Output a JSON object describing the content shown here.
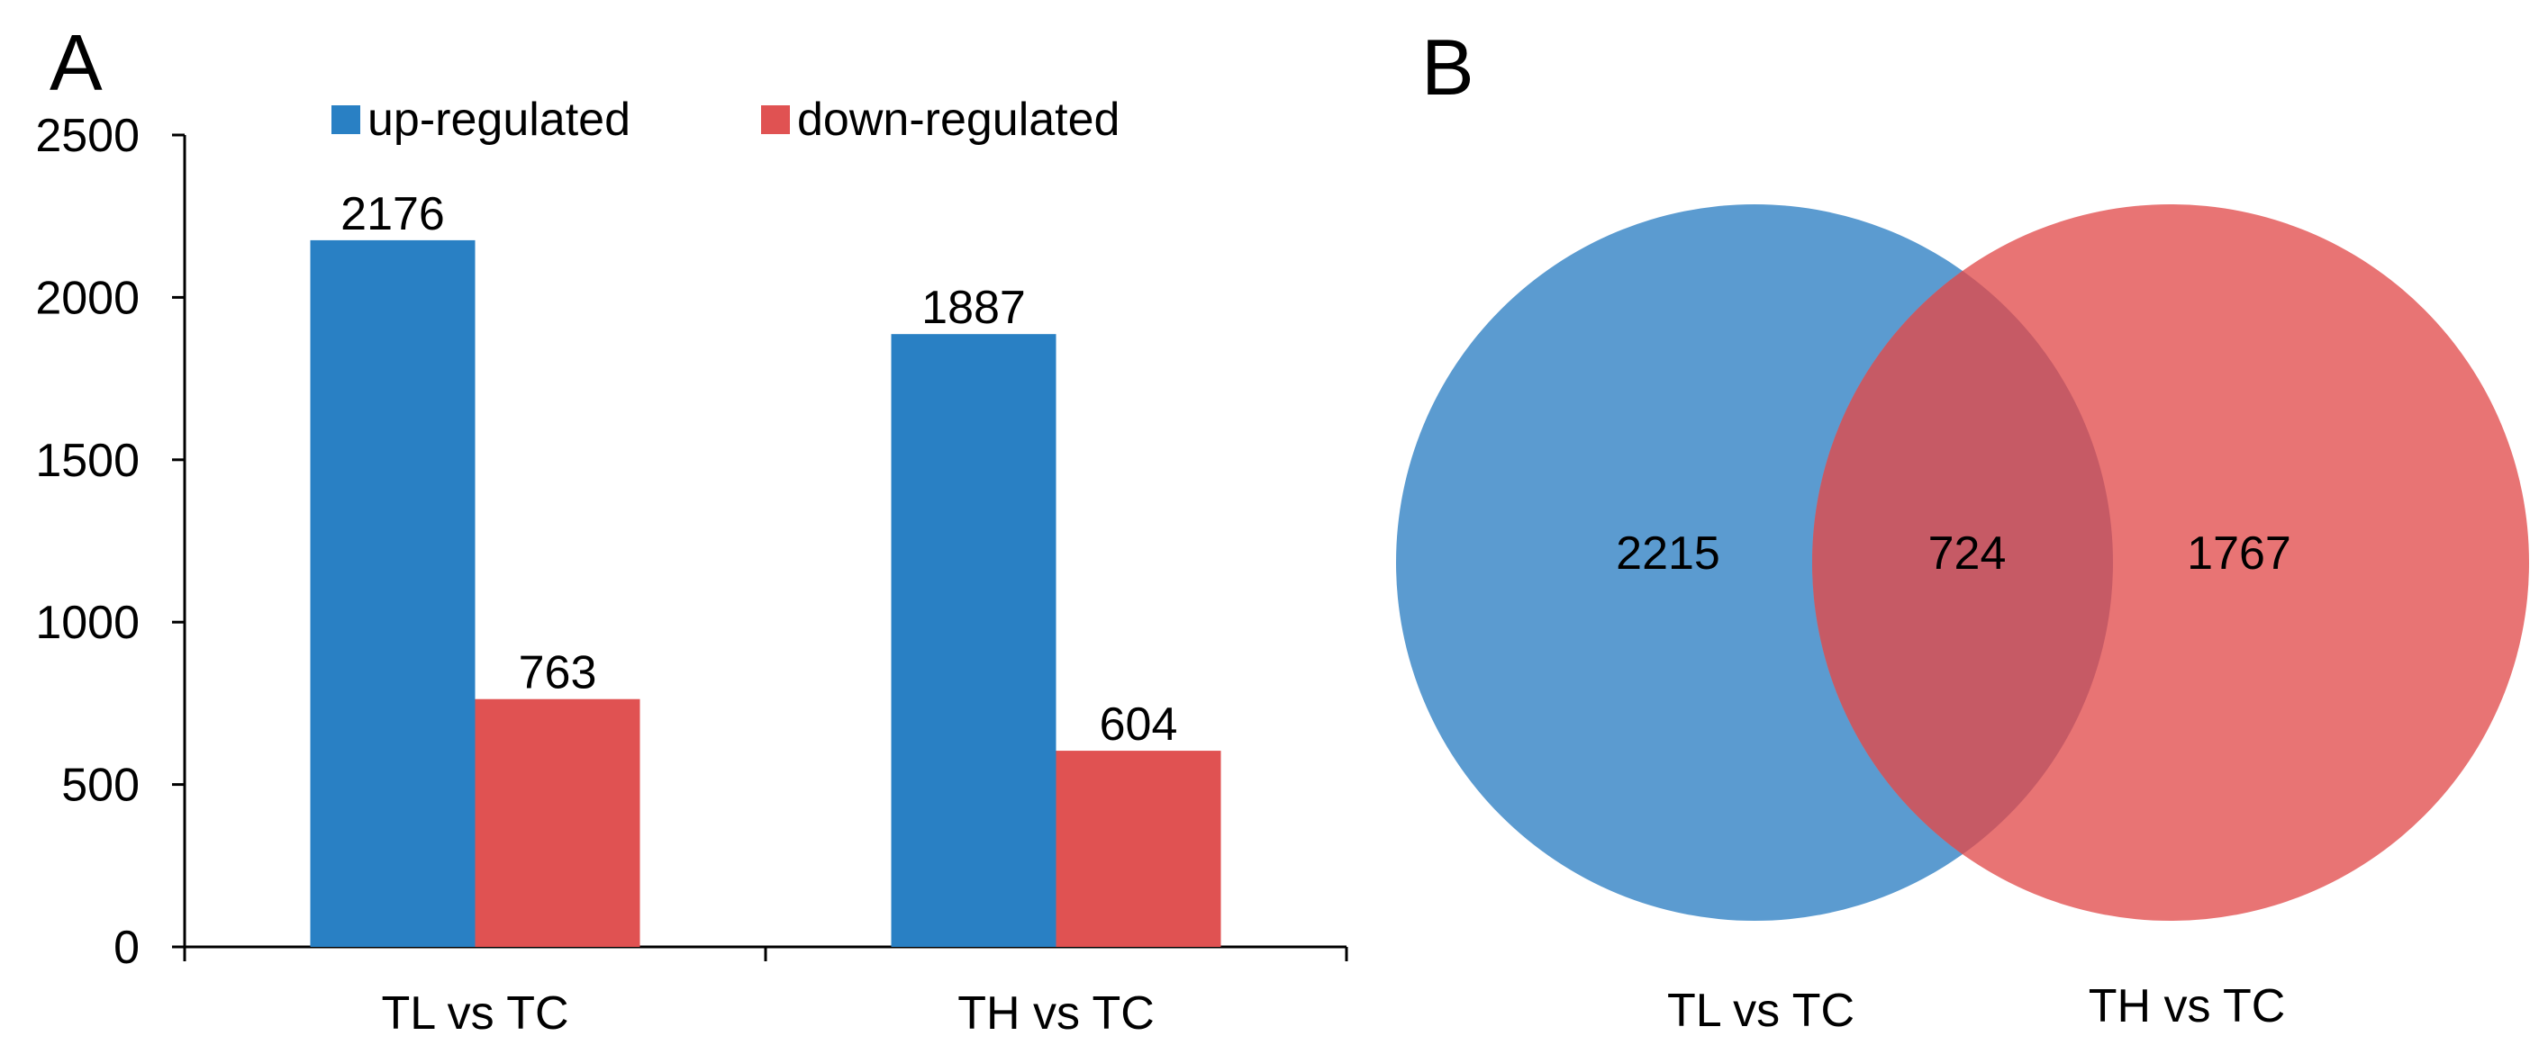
{
  "panels": {
    "a_label": "A",
    "b_label": "B"
  },
  "chart_data": [
    {
      "type": "bar",
      "categories": [
        "TL vs TC",
        "TH vs TC"
      ],
      "series": [
        {
          "name": "up-regulated",
          "values": [
            2176,
            1887
          ],
          "color": "#2980c4"
        },
        {
          "name": "down-regulated",
          "values": [
            763,
            604
          ],
          "color": "#e05252"
        }
      ],
      "data_labels": [
        [
          "2176",
          "1887"
        ],
        [
          "763",
          "604"
        ]
      ],
      "yticks": [
        "0",
        "500",
        "1000",
        "1500",
        "2000",
        "2500"
      ],
      "ylim": [
        0,
        2500
      ],
      "grid": false,
      "legend": "top"
    },
    {
      "type": "venn",
      "sets": [
        {
          "name": "TL vs TC",
          "only": "2215",
          "color": "#5b9bd0"
        },
        {
          "name": "TH vs TC",
          "only": "1767",
          "color": "#e87474"
        }
      ],
      "intersection": "724",
      "intersection_color": "#c65a65"
    }
  ]
}
